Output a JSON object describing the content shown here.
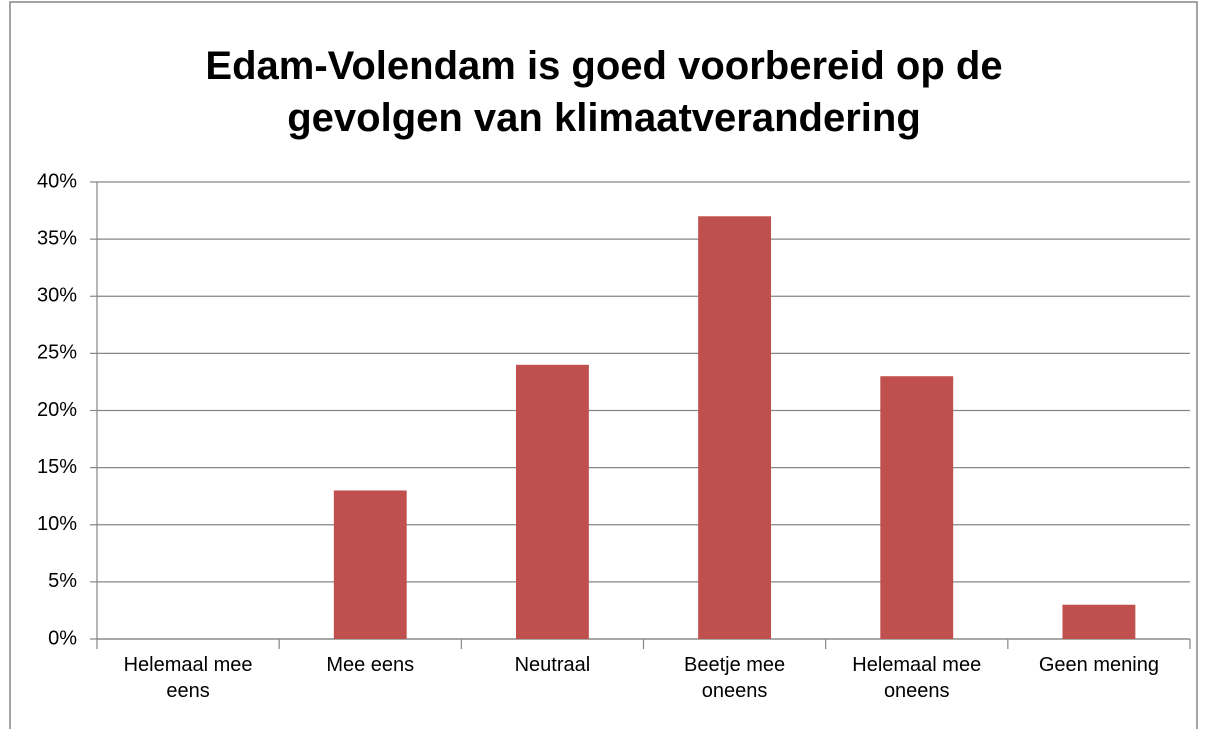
{
  "chart_data": {
    "type": "bar",
    "title": "Edam-Volendam is goed voorbereid op de gevolgen van klimaatverandering",
    "categories": [
      "Helemaal mee eens",
      "Mee eens",
      "Neutraal",
      "Beetje mee oneens",
      "Helemaal mee oneens",
      "Geen mening"
    ],
    "values": [
      0,
      13,
      24,
      37,
      23,
      3
    ],
    "color": "#c0504d",
    "ylim": [
      0,
      40
    ],
    "yticks": [
      {
        "value": 0,
        "label": "0%"
      },
      {
        "value": 5,
        "label": "5%"
      },
      {
        "value": 10,
        "label": "10%"
      },
      {
        "value": 15,
        "label": "15%"
      },
      {
        "value": 20,
        "label": "20%"
      },
      {
        "value": 25,
        "label": "25%"
      },
      {
        "value": 30,
        "label": "30%"
      },
      {
        "value": 35,
        "label": "35%"
      },
      {
        "value": 40,
        "label": "40%"
      }
    ],
    "grid": true
  }
}
